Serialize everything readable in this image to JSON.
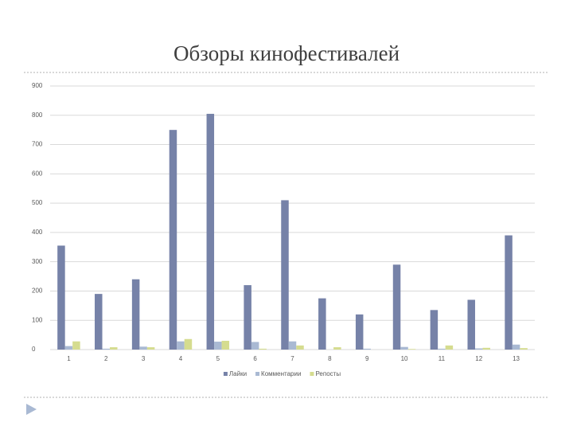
{
  "chart_data": {
    "type": "bar",
    "title": "Обзоры кинофестивалей",
    "categories": [
      "1",
      "2",
      "3",
      "4",
      "5",
      "6",
      "7",
      "8",
      "9",
      "10",
      "11",
      "12",
      "13"
    ],
    "series": [
      {
        "name": "Лайки",
        "color": "#7682a8",
        "values": [
          355,
          190,
          240,
          750,
          805,
          220,
          510,
          175,
          120,
          290,
          135,
          170,
          390
        ]
      },
      {
        "name": "Комментарии",
        "color": "#a9b9d3",
        "values": [
          12,
          3,
          10,
          28,
          27,
          26,
          28,
          0,
          3,
          9,
          3,
          4,
          17
        ]
      },
      {
        "name": "Репосты",
        "color": "#d5dc8f",
        "values": [
          28,
          8,
          8,
          36,
          30,
          3,
          14,
          8,
          0,
          2,
          14,
          6,
          5
        ]
      }
    ],
    "ylim": [
      0,
      900
    ],
    "yticks": [
      0,
      100,
      200,
      300,
      400,
      500,
      600,
      700,
      800,
      900
    ],
    "grid": true,
    "legend": "bottom"
  }
}
